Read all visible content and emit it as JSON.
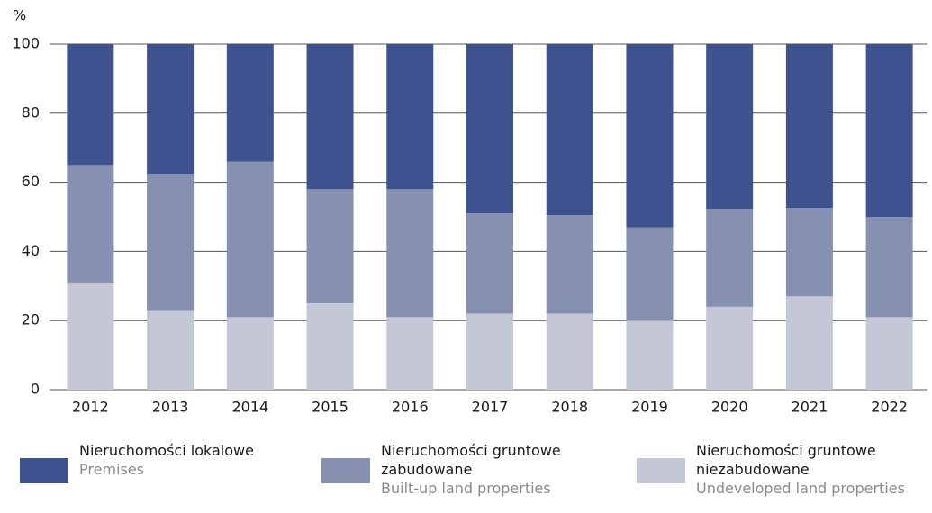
{
  "chart_data": {
    "type": "stacked_bar",
    "y_label": "%",
    "categories": [
      "2012",
      "2013",
      "2014",
      "2015",
      "2016",
      "2017",
      "2018",
      "2019",
      "2020",
      "2021",
      "2022"
    ],
    "series": [
      {
        "name": "Nieruchomości lokalowe",
        "subtitle": "Premises",
        "color": "#3f5290",
        "values": [
          35,
          37.5,
          34,
          42,
          42,
          49,
          49.5,
          53,
          47.7,
          47.4,
          50
        ]
      },
      {
        "name": "Nieruchomości gruntowe zabudowane",
        "subtitle": "Built-up land properties",
        "color": "#8690b0",
        "values": [
          34,
          39.5,
          45,
          33,
          37,
          29,
          28.5,
          27,
          28.3,
          25.6,
          29
        ]
      },
      {
        "name": "Nieruchomości gruntowe niezabudowane",
        "subtitle": "Undeveloped land properties",
        "color": "#c4c7d6",
        "values": [
          31,
          23,
          21,
          25,
          21,
          22,
          22,
          20,
          24,
          27,
          21
        ]
      }
    ],
    "ylim": [
      0,
      100
    ],
    "yticks": [
      0,
      20,
      40,
      60,
      80,
      100
    ],
    "grid": true
  }
}
